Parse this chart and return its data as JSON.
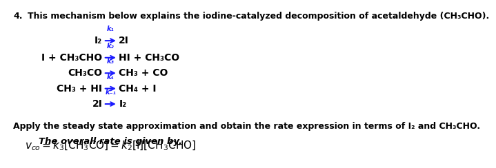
{
  "title_number": "4.",
  "title_text": "This mechanism below explains the iodine-catalyzed decomposition of acetaldehyde (CH₃CHO).",
  "reactions": [
    {
      "left": "I₂",
      "k": "k₁",
      "right": "2I"
    },
    {
      "left": "I + CH₃CHO",
      "k": "k₂",
      "right": "HI + CH₃CO"
    },
    {
      "left": "CH₃CO",
      "k": "k₃",
      "right": "CH₃ + CO"
    },
    {
      "left": "CH₃ + HI",
      "k": "k₄",
      "right": "CH₄ + I"
    },
    {
      "left": "2I",
      "k": "k₋₁",
      "right": "I₂"
    }
  ],
  "steady_state_text": "Apply the steady state approximation and obtain the rate expression in terms of I₂ and CH₃CHO.",
  "overall_rate_label": "The overall rate is given by,",
  "rate_equation": "v_{co} = k_3[CH_3CO] = k_2[I][CH_3CHO]",
  "arrow_color": "#1a1aff",
  "text_color": "#000000",
  "background_color": "#ffffff",
  "title_fontsize": 9,
  "reaction_fontsize": 10,
  "steady_state_fontsize": 9,
  "overall_fontsize": 9.5,
  "equation_fontsize": 11
}
